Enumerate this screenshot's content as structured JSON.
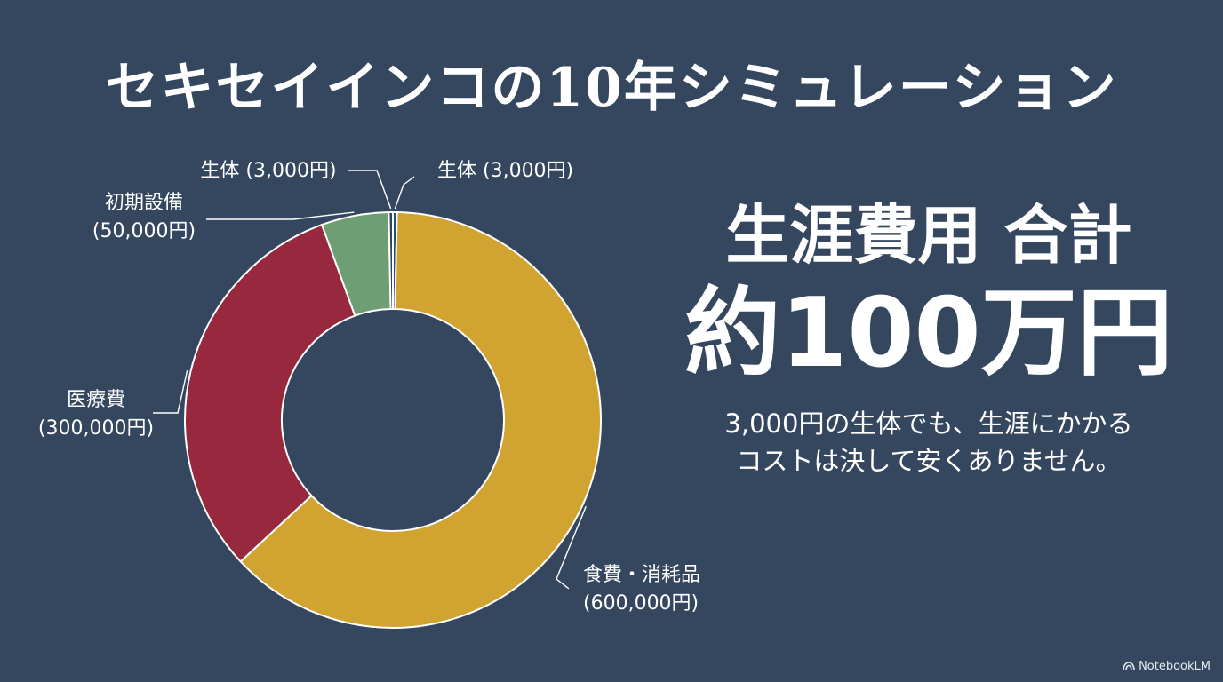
{
  "title": "セキセイインコの10年シミュレーション",
  "summary": {
    "heading": "生涯費用 合計",
    "total": "約100万円",
    "note_line1": "3,000円の生体でも、生涯にかかる",
    "note_line2": "コストは決して安くありません。"
  },
  "brand": {
    "label": "NotebookLM",
    "icon": "notebooklm-logo-icon"
  },
  "colors": {
    "background": "#34475f",
    "slice_border": "#ffffff",
    "leader_line": "#ffffff"
  },
  "chart_data": {
    "type": "pie",
    "donut": true,
    "start_angle_deg": 0,
    "direction": "clockwise",
    "slices": [
      {
        "name": "生体",
        "label": "生体 (3,000円)",
        "label_lines": [
          "生体 (3,000円)"
        ],
        "value": 3000,
        "color": "#2a4d73",
        "label_side": "top-right"
      },
      {
        "name": "食費・消耗品",
        "label": "食費・消耗品 (600,000円)",
        "label_lines": [
          "食費・消耗品",
          "(600,000円)"
        ],
        "value": 600000,
        "color": "#d1a431",
        "label_side": "bottom-right"
      },
      {
        "name": "医療費",
        "label": "医療費 (300,000円)",
        "label_lines": [
          "医療費",
          "(300,000円)"
        ],
        "value": 300000,
        "color": "#98283d",
        "label_side": "left"
      },
      {
        "name": "初期設備",
        "label": "初期設備 (50,000円)",
        "label_lines": [
          "初期設備",
          "(50,000円)"
        ],
        "value": 50000,
        "color": "#6e9e73",
        "label_side": "top-left"
      },
      {
        "name": "生体",
        "label": "生体 (3,000円)",
        "label_lines": [
          "生体 (3,000円)"
        ],
        "value": 3000,
        "color": "#2f4460",
        "label_side": "top"
      }
    ]
  }
}
